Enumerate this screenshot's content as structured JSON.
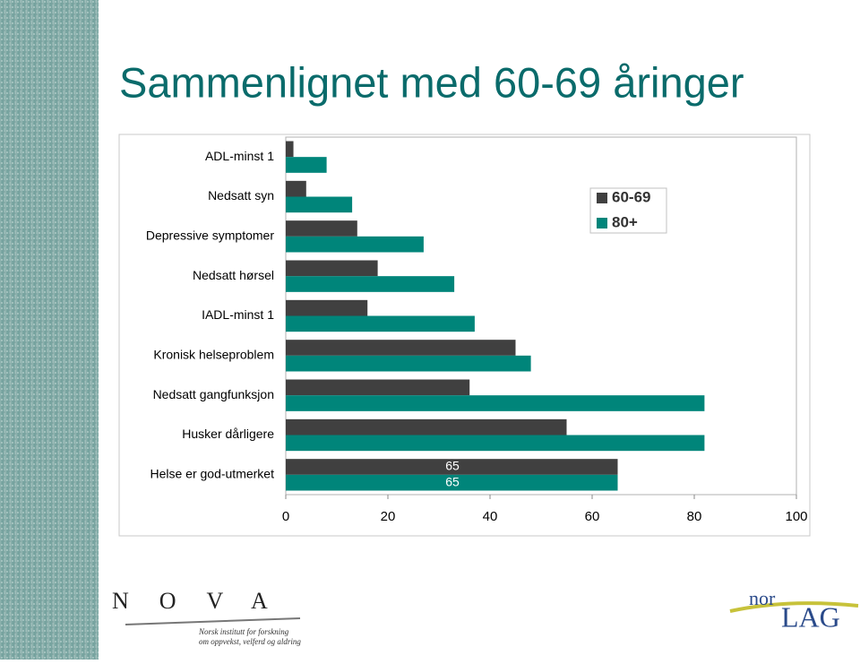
{
  "chart_data": {
    "type": "bar",
    "orientation": "horizontal",
    "title": "Sammenlignet med 60-69 åringer",
    "categories": [
      "ADL-minst 1",
      "Nedsatt syn",
      "Depressive symptomer",
      "Nedsatt hørsel",
      "IADL-minst 1",
      "Kronisk helseproblem",
      "Nedsatt gangfunksjon",
      "Husker dårligere",
      "Helse er god-utmerket"
    ],
    "series": [
      {
        "name": "60-69",
        "color": "#404040",
        "values": [
          1.5,
          4,
          14,
          18,
          16,
          45,
          36,
          55,
          65
        ],
        "value_labels": [
          null,
          null,
          null,
          null,
          null,
          null,
          null,
          null,
          "65"
        ]
      },
      {
        "name": "80+",
        "color": "#00857a",
        "values": [
          8,
          13,
          27,
          33,
          37,
          48,
          82,
          82,
          65
        ],
        "value_labels": [
          null,
          null,
          null,
          null,
          null,
          null,
          null,
          null,
          "65"
        ]
      }
    ],
    "xlim": [
      0,
      100
    ],
    "xticks": [
      0,
      20,
      40,
      60,
      80,
      100
    ],
    "grid": false,
    "legend": "top-right"
  },
  "logos": {
    "nova": "NOVA",
    "nova_line1": "Norsk institutt for forskning",
    "nova_line2": "om oppvekst, velferd og aldring",
    "norlag_small": "nor",
    "norlag_big": "LAG"
  }
}
